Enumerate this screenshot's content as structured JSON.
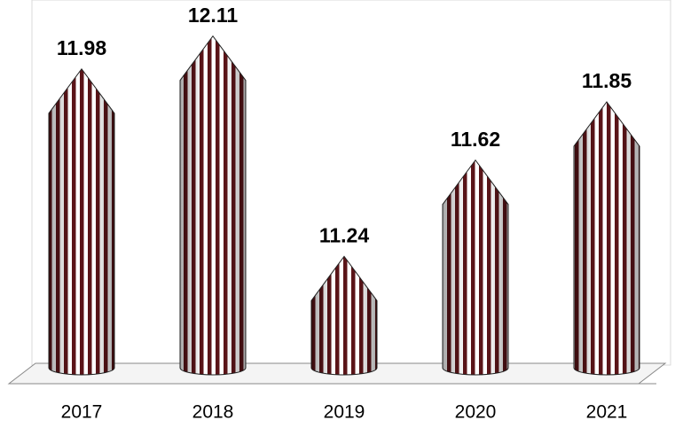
{
  "chart_data": {
    "type": "bar",
    "categories": [
      "2017",
      "2018",
      "2019",
      "2020",
      "2021"
    ],
    "values": [
      11.98,
      12.11,
      11.24,
      11.62,
      11.85
    ],
    "color": "#5a1418",
    "ylim": [
      10.8,
      12.2
    ]
  }
}
